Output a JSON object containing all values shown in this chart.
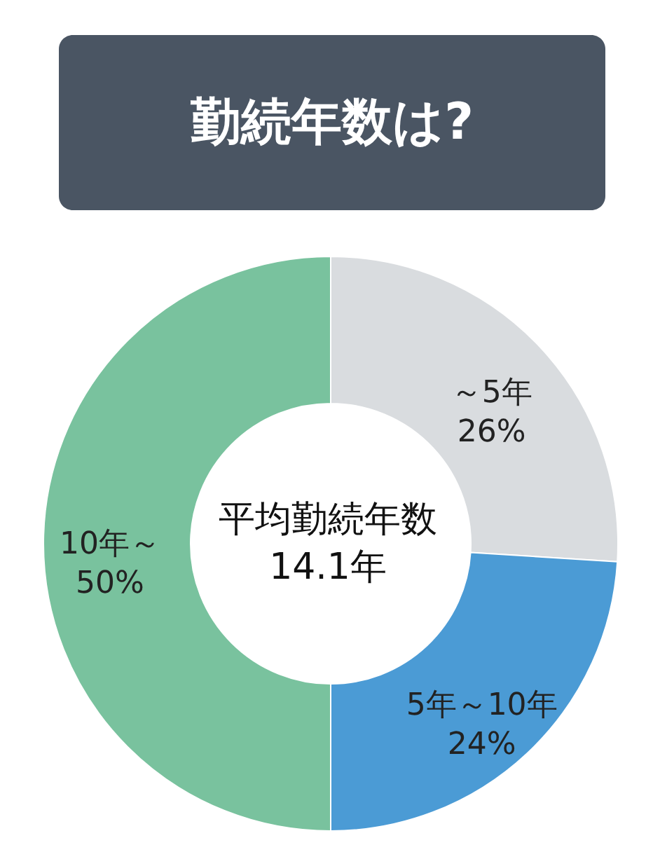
{
  "chart_data": {
    "type": "donut",
    "title": "勤続年数は?",
    "categories": [
      "～5年",
      "5年～10年",
      "10年～"
    ],
    "values": [
      26,
      24,
      50
    ],
    "value_labels": [
      "26%",
      "24%",
      "50%"
    ],
    "colors": [
      "#d9dcdf",
      "#4b9bd5",
      "#79c29e"
    ],
    "annotations": [
      "平均勤続年数",
      "14.1年"
    ]
  }
}
